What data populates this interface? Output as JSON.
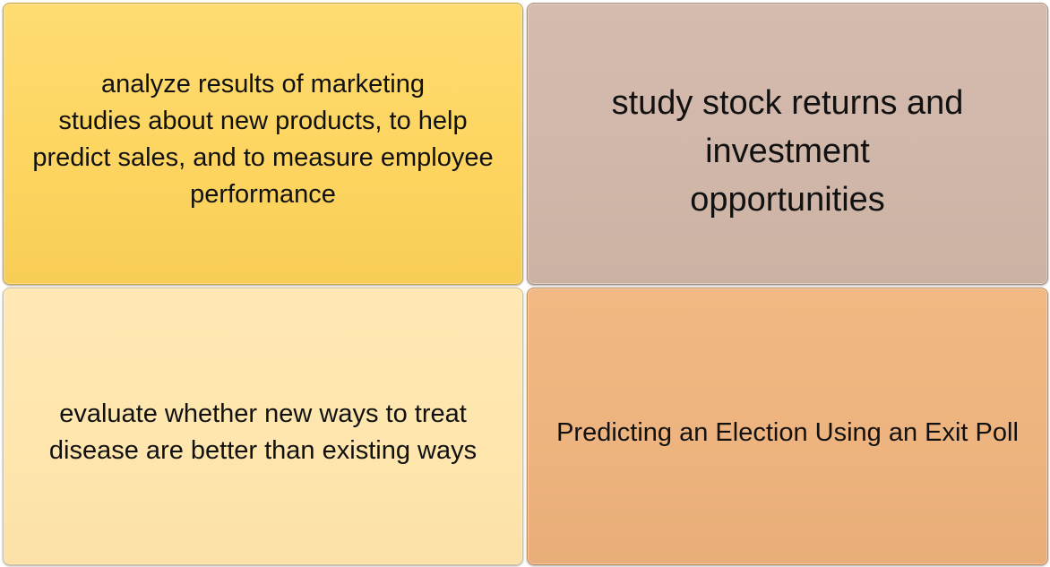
{
  "tiles": {
    "top_left": {
      "text": "analyze results of marketing\nstudies about new products, to help\npredict sales, and to measure employee\nperformance",
      "color": "#fdd663"
    },
    "top_right": {
      "text": "study stock returns and\ninvestment\nopportunities",
      "color": "#d1b7a9"
    },
    "bottom_left": {
      "text": "evaluate whether new ways to treat\ndisease are better than existing ways",
      "color": "#fee6ae"
    },
    "bottom_right": {
      "text": "Predicting an Election Using an Exit Poll",
      "color": "#eeb47f"
    }
  }
}
